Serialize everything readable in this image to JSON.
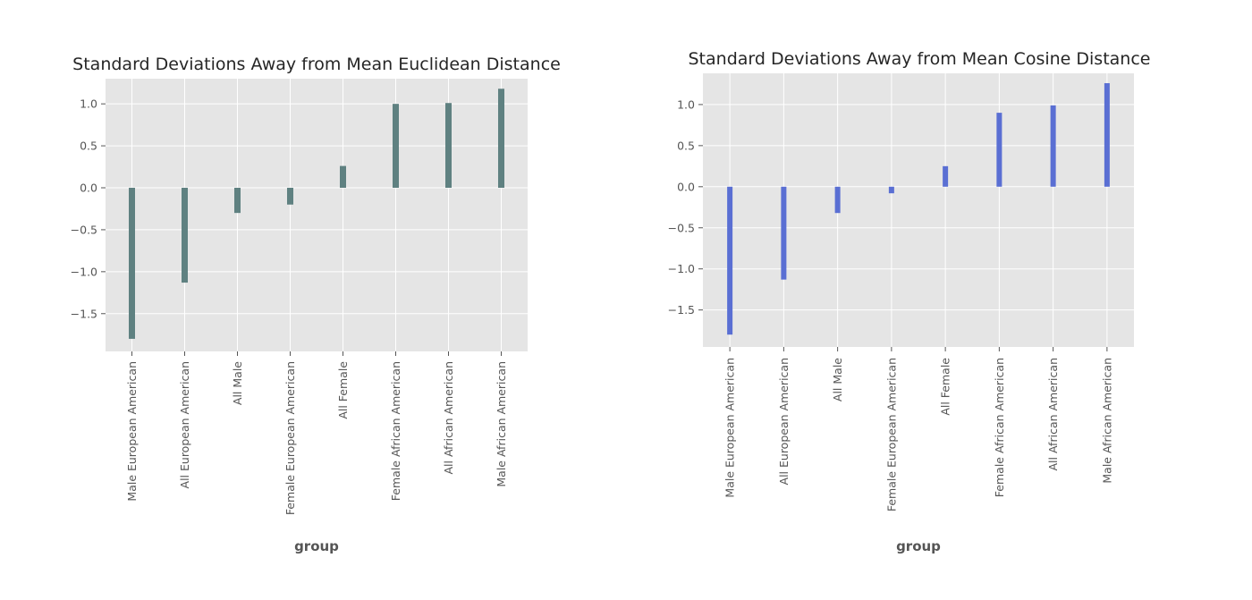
{
  "chart_data": [
    {
      "type": "bar",
      "title": "Standard Deviations Away from Mean Euclidean Distance",
      "xlabel": "group",
      "ylabel": "",
      "categories": [
        "Male European American",
        "All European American",
        "All Male",
        "Female European American",
        "All Female",
        "Female African American",
        "All African American",
        "Male African American"
      ],
      "values": [
        -1.8,
        -1.13,
        -0.3,
        -0.2,
        0.26,
        1.0,
        1.01,
        1.18
      ],
      "ylim": [
        -1.95,
        1.3
      ],
      "yticks": [
        1.0,
        0.5,
        0.0,
        -0.5,
        -1.0,
        -1.5
      ],
      "ytick_labels": [
        "1.0",
        "0.5",
        "0.0",
        "−0.5",
        "−1.0",
        "−1.5"
      ],
      "grid": true,
      "bar_color": "#5f8181",
      "background_color": "#e5e5e5"
    },
    {
      "type": "bar",
      "title": "Standard Deviations Away from Mean Cosine Distance",
      "xlabel": "group",
      "ylabel": "",
      "categories": [
        "Male European American",
        "All European American",
        "All Male",
        "Female European American",
        "All Female",
        "Female African American",
        "All African American",
        "Male African American"
      ],
      "values": [
        -1.8,
        -1.13,
        -0.32,
        -0.08,
        0.25,
        0.9,
        0.99,
        1.26
      ],
      "ylim": [
        -1.95,
        1.38
      ],
      "yticks": [
        1.0,
        0.5,
        0.0,
        -0.5,
        -1.0,
        -1.5
      ],
      "ytick_labels": [
        "1.0",
        "0.5",
        "0.0",
        "−0.5",
        "−1.0",
        "−1.5"
      ],
      "grid": true,
      "bar_color": "#5a6fd3",
      "background_color": "#e5e5e5"
    }
  ]
}
